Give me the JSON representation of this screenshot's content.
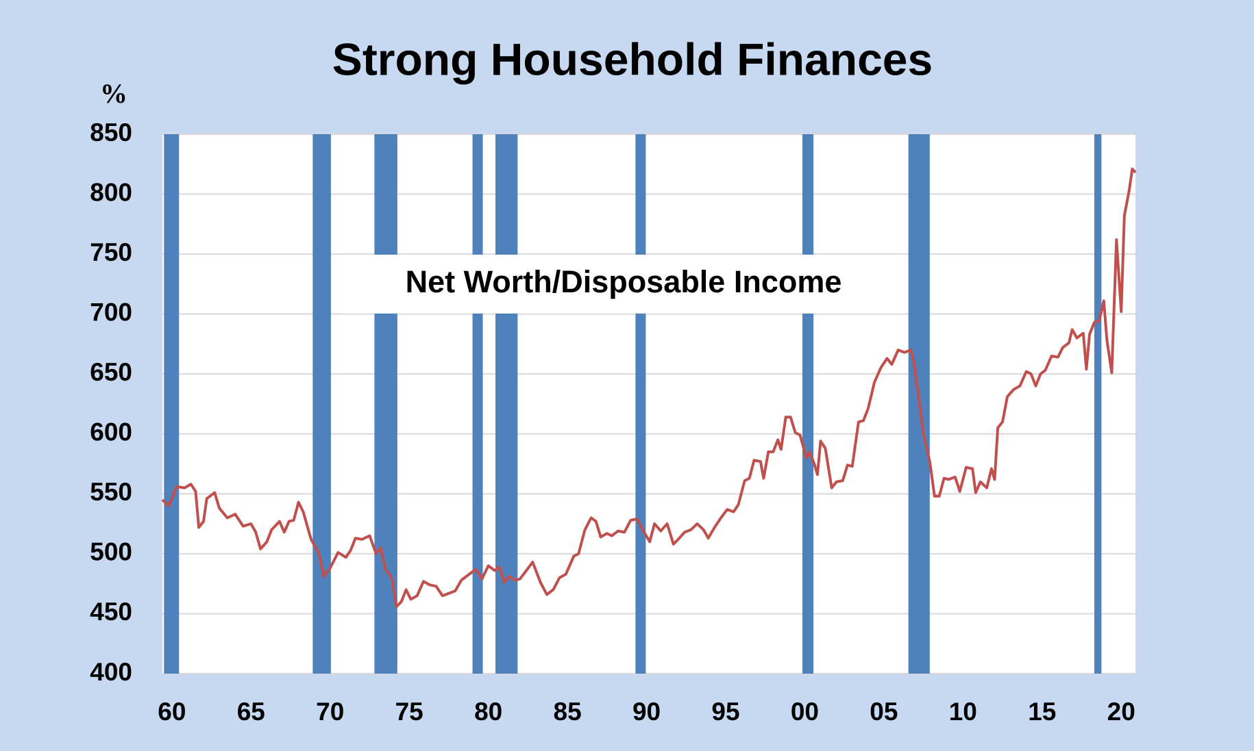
{
  "chart_data": {
    "type": "line",
    "title": "Strong Household Finances",
    "y_label": "%",
    "annotation": "Net Worth/Disposable Income",
    "color": "#c0504d",
    "recession_color": "#4f81bd",
    "grid": true,
    "xlim": [
      1959.4,
      2020.9
    ],
    "ylim": [
      400,
      850
    ],
    "yticks": [
      400,
      450,
      500,
      550,
      600,
      650,
      700,
      750,
      800,
      850
    ],
    "xticks": [
      {
        "value": 1960,
        "label": "60"
      },
      {
        "value": 1965,
        "label": "65"
      },
      {
        "value": 1970,
        "label": "70"
      },
      {
        "value": 1975,
        "label": "75"
      },
      {
        "value": 1980,
        "label": "80"
      },
      {
        "value": 1985,
        "label": "85"
      },
      {
        "value": 1990,
        "label": "90"
      },
      {
        "value": 1995,
        "label": "95"
      },
      {
        "value": 2000,
        "label": "00"
      },
      {
        "value": 2005,
        "label": "05"
      },
      {
        "value": 2010,
        "label": "10"
      },
      {
        "value": 2015,
        "label": "15"
      },
      {
        "value": 2020,
        "label": "20"
      }
    ],
    "recessions": [
      [
        1959.5,
        1960.45
      ],
      [
        1968.9,
        1970.05
      ],
      [
        1972.8,
        1974.25
      ],
      [
        1979.0,
        1979.65
      ],
      [
        1980.45,
        1981.85
      ],
      [
        1989.3,
        1989.95
      ],
      [
        1999.85,
        2000.55
      ],
      [
        2006.55,
        2007.9
      ],
      [
        2018.3,
        2018.75
      ]
    ],
    "x": [
      1959.4,
      1959.8,
      1960.3,
      1960.8,
      1961.2,
      1961.5,
      1961.7,
      1962.0,
      1962.2,
      1962.7,
      1963.0,
      1963.5,
      1964.0,
      1964.5,
      1965.0,
      1965.3,
      1965.6,
      1966.0,
      1966.3,
      1966.8,
      1967.1,
      1967.4,
      1967.7,
      1968.0,
      1968.3,
      1968.8,
      1969.3,
      1969.6,
      1970.0,
      1970.5,
      1971.0,
      1971.3,
      1971.6,
      1972.0,
      1972.5,
      1972.9,
      1973.2,
      1973.5,
      1973.9,
      1974.2,
      1974.5,
      1974.8,
      1975.1,
      1975.5,
      1975.9,
      1976.3,
      1976.7,
      1977.1,
      1977.5,
      1977.9,
      1978.3,
      1978.7,
      1979.2,
      1979.6,
      1980.0,
      1980.4,
      1980.7,
      1981.0,
      1981.3,
      1981.7,
      1982.0,
      1982.4,
      1982.8,
      1983.3,
      1983.7,
      1984.1,
      1984.5,
      1984.9,
      1985.4,
      1985.7,
      1986.1,
      1986.5,
      1986.8,
      1987.1,
      1987.5,
      1987.8,
      1988.2,
      1988.6,
      1989.0,
      1989.4,
      1989.8,
      1990.2,
      1990.5,
      1990.9,
      1991.3,
      1991.7,
      1992.0,
      1992.4,
      1992.8,
      1993.2,
      1993.6,
      1993.9,
      1994.3,
      1994.7,
      1995.1,
      1995.5,
      1995.8,
      1996.2,
      1996.5,
      1996.8,
      1997.2,
      1997.4,
      1997.7,
      1998.0,
      1998.3,
      1998.5,
      1998.8,
      1999.1,
      1999.4,
      1999.7,
      2000.1,
      2000.3,
      2000.6,
      2000.8,
      2001.0,
      2001.3,
      2001.7,
      2002.0,
      2002.4,
      2002.7,
      2003.0,
      2003.4,
      2003.7,
      2004.0,
      2004.4,
      2004.8,
      2005.2,
      2005.5,
      2005.9,
      2006.3,
      2006.7,
      2006.9,
      2007.2,
      2007.5,
      2007.9,
      2008.2,
      2008.5,
      2008.8,
      2009.1,
      2009.5,
      2009.8,
      2010.2,
      2010.6,
      2010.8,
      2011.1,
      2011.5,
      2011.8,
      2012.0,
      2012.2,
      2012.5,
      2012.8,
      2013.2,
      2013.6,
      2014.0,
      2014.3,
      2014.6,
      2014.9,
      2015.2,
      2015.6,
      2016.0,
      2016.3,
      2016.7,
      2016.9,
      2017.2,
      2017.6,
      2017.8,
      2018.0,
      2018.3,
      2018.6,
      2018.9,
      2019.1,
      2019.4,
      2019.7,
      2020.0,
      2020.2,
      2020.5,
      2020.7,
      2020.9
    ],
    "values": [
      545,
      540,
      556,
      555,
      558,
      552,
      522,
      527,
      546,
      551,
      538,
      530,
      533,
      523,
      525,
      518,
      504,
      510,
      520,
      527,
      518,
      527,
      528,
      543,
      535,
      512,
      500,
      481,
      488,
      501,
      497,
      503,
      513,
      512,
      515,
      500,
      505,
      487,
      480,
      456,
      460,
      470,
      462,
      465,
      477,
      474,
      473,
      465,
      467,
      469,
      478,
      482,
      487,
      479,
      490,
      486,
      489,
      476,
      481,
      478,
      479,
      486,
      493,
      476,
      466,
      470,
      480,
      483,
      498,
      500,
      520,
      530,
      527,
      514,
      517,
      515,
      519,
      518,
      528,
      529,
      519,
      510,
      525,
      519,
      525,
      508,
      512,
      518,
      520,
      525,
      520,
      513,
      522,
      530,
      537,
      535,
      541,
      561,
      563,
      578,
      577,
      563,
      585,
      585,
      595,
      587,
      614,
      614,
      601,
      599,
      580,
      585,
      575,
      566,
      594,
      588,
      555,
      560,
      561,
      574,
      573,
      610,
      611,
      621,
      643,
      655,
      663,
      658,
      670,
      668,
      670,
      660,
      630,
      600,
      577,
      548,
      548,
      563,
      562,
      564,
      552,
      572,
      571,
      551,
      560,
      555,
      571,
      562,
      605,
      610,
      631,
      637,
      640,
      652,
      650,
      640,
      650,
      653,
      665,
      664,
      672,
      676,
      687,
      680,
      684,
      654,
      683,
      693,
      694,
      711,
      678,
      651,
      762,
      702,
      782,
      803,
      821,
      818
    ]
  }
}
